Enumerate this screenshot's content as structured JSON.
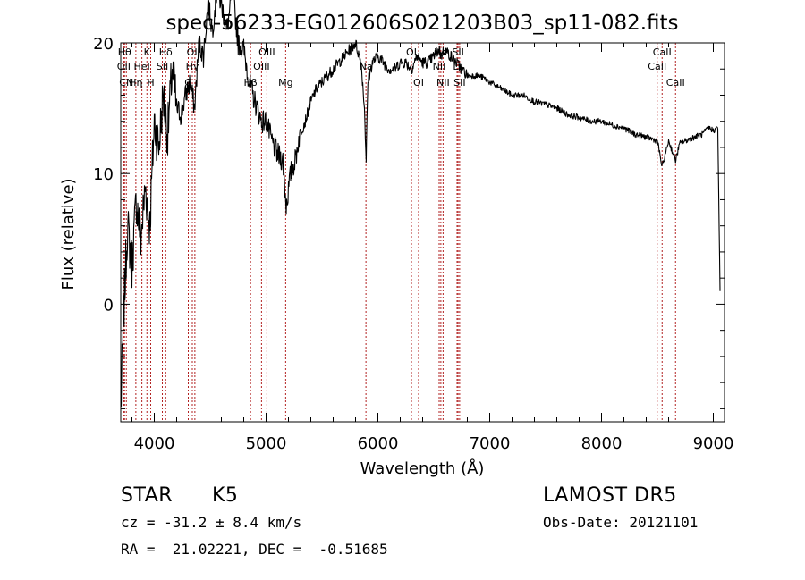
{
  "chart_data": {
    "type": "line",
    "title": "spec-56233-EG012606S021203B03_sp11-082.fits",
    "xlabel": "Wavelength (Å)",
    "ylabel": "Flux (relative)",
    "xlim": [
      3700,
      9100
    ],
    "ylim": [
      -9,
      20
    ],
    "x_ticks": [
      4000,
      5000,
      6000,
      7000,
      8000,
      9000
    ],
    "y_ticks": [
      0,
      10,
      20
    ],
    "grid": false,
    "series": [
      {
        "x": [
          3700,
          3730,
          3760,
          3800,
          3840,
          3880,
          3920,
          3960,
          4000,
          4040,
          4080,
          4120,
          4160,
          4200,
          4240,
          4280,
          4320,
          4360,
          4400,
          4440,
          4480,
          4520,
          4560,
          4600,
          4650,
          4700,
          4750,
          4800,
          4850,
          4880,
          4920,
          4960,
          5000,
          5050,
          5100,
          5150,
          5180,
          5220,
          5260,
          5300,
          5350,
          5400,
          5450,
          5500,
          5550,
          5600,
          5650,
          5700,
          5750,
          5800,
          5850,
          5880,
          5895,
          5910,
          5950,
          6000,
          6050,
          6100,
          6150,
          6200,
          6250,
          6300,
          6350,
          6400,
          6450,
          6500,
          6550,
          6563,
          6600,
          6650,
          6700,
          6750,
          6800,
          6850,
          6900,
          6950,
          7000,
          7100,
          7200,
          7300,
          7400,
          7500,
          7600,
          7700,
          7800,
          7900,
          8000,
          8100,
          8200,
          8300,
          8400,
          8500,
          8542,
          8600,
          8662,
          8700,
          8800,
          8900,
          8960,
          9000,
          9040,
          9060
        ],
        "y": [
          -8.0,
          0.0,
          6.0,
          3.0,
          8.0,
          5.0,
          9.0,
          6.0,
          14.0,
          12.0,
          16.0,
          13.0,
          18.0,
          15.0,
          14.5,
          16.0,
          17.0,
          15.0,
          20.0,
          19.0,
          23.0,
          21.0,
          24.0,
          23.0,
          21.0,
          24.0,
          20.0,
          19.5,
          17.0,
          16.0,
          15.0,
          14.0,
          14.0,
          12.5,
          11.5,
          11.0,
          7.5,
          10.0,
          11.0,
          13.0,
          14.0,
          15.5,
          16.5,
          17.0,
          17.5,
          18.0,
          18.5,
          19.0,
          19.5,
          20.0,
          18.5,
          15.0,
          11.0,
          17.0,
          18.5,
          19.0,
          18.5,
          18.0,
          18.0,
          18.5,
          18.5,
          18.0,
          19.0,
          18.5,
          18.5,
          19.0,
          19.5,
          19.0,
          19.5,
          19.0,
          18.5,
          18.0,
          17.5,
          17.5,
          17.5,
          17.3,
          17.0,
          16.5,
          16.0,
          16.0,
          15.5,
          15.3,
          15.0,
          14.5,
          14.3,
          14.0,
          14.0,
          13.7,
          13.5,
          13.0,
          12.8,
          12.5,
          10.5,
          12.5,
          11.0,
          12.3,
          12.7,
          13.0,
          13.5,
          13.3,
          13.5,
          1.0
        ]
      }
    ],
    "lines": [
      {
        "x": 3734,
        "label": "Hθ",
        "row": 0
      },
      {
        "x": 3727,
        "label": "OII",
        "row": 1
      },
      {
        "x": 3750,
        "label": "CN",
        "row": 2
      },
      {
        "x": 3835,
        "label": "Hη",
        "row": 2
      },
      {
        "x": 3889,
        "label": "HeI",
        "row": 1
      },
      {
        "x": 3934,
        "label": "K",
        "row": 0
      },
      {
        "x": 3968,
        "label": "H",
        "row": 2
      },
      {
        "x": 4072,
        "label": "SII",
        "row": 1
      },
      {
        "x": 4102,
        "label": "Hδ",
        "row": 0
      },
      {
        "x": 4304,
        "label": "G",
        "row": 2
      },
      {
        "x": 4340,
        "label": "Hγ",
        "row": 1
      },
      {
        "x": 4363,
        "label": "OIII",
        "row": 0
      },
      {
        "x": 4861,
        "label": "Hβ",
        "row": 2
      },
      {
        "x": 4959,
        "label": "OIII",
        "row": 1
      },
      {
        "x": 5007,
        "label": "OIII",
        "row": 0
      },
      {
        "x": 5175,
        "label": "Mg",
        "row": 2
      },
      {
        "x": 5893,
        "label": "Na",
        "row": 1
      },
      {
        "x": 6300,
        "label": "OI",
        "row": 0
      },
      {
        "x": 6364,
        "label": "OI",
        "row": 2
      },
      {
        "x": 6548,
        "label": "NII",
        "row": 1
      },
      {
        "x": 6563,
        "label": "Hα",
        "row": 0
      },
      {
        "x": 6583,
        "label": "NII",
        "row": 2
      },
      {
        "x": 6708,
        "label": "Li",
        "row": 1
      },
      {
        "x": 6717,
        "label": "SII",
        "row": 0
      },
      {
        "x": 6731,
        "label": "SII",
        "row": 2
      },
      {
        "x": 8498,
        "label": "CaII",
        "row": 1
      },
      {
        "x": 8542,
        "label": "CaII",
        "row": 0
      },
      {
        "x": 8662,
        "label": "CaII",
        "row": 2
      }
    ]
  },
  "info": {
    "class_label": "STAR",
    "subclass": "K5",
    "cz_text": "cz = -31.2 ± 8.4 km/s",
    "radec_text": "RA =  21.02221, DEC =  -0.51685",
    "survey": "LAMOST DR5",
    "obs_date": "Obs-Date: 20121101"
  },
  "colors": {
    "line_marker": "#b22222",
    "spectrum": "#000000"
  }
}
